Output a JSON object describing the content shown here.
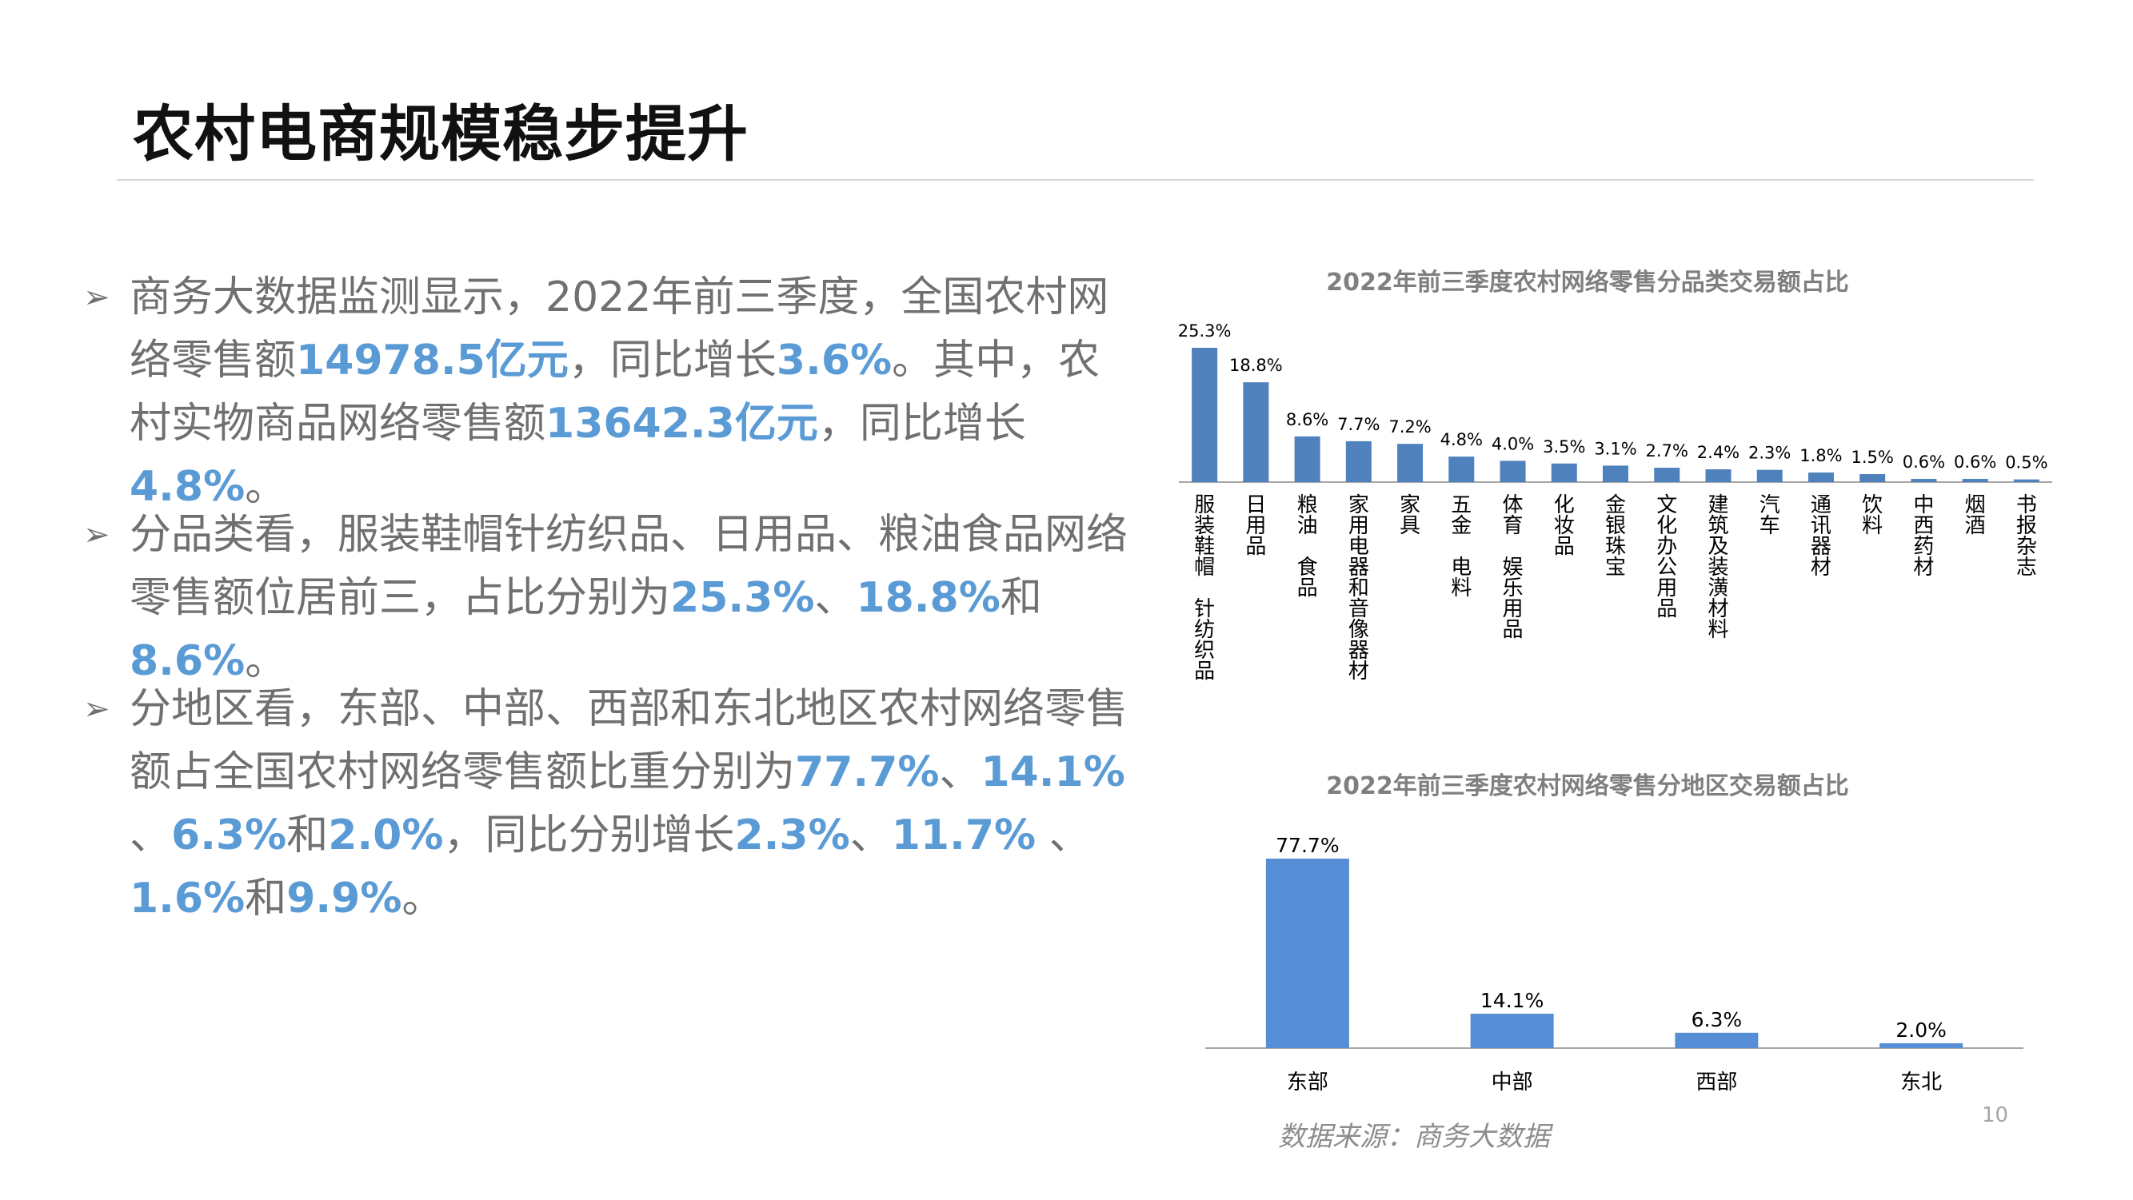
{
  "title": "农村电商规模稳步提升",
  "bullets": [
    {
      "marker": "➢",
      "segments": [
        {
          "t": "商务大数据监测显示，2022年前三季度，全国农村网络零售额",
          "hl": false
        },
        {
          "t": "14978.5亿元",
          "hl": true
        },
        {
          "t": "，同比增长",
          "hl": false
        },
        {
          "t": "3.6%",
          "hl": true
        },
        {
          "t": "。其中，农村实物商品网络零售额",
          "hl": false
        },
        {
          "t": "13642.3亿元",
          "hl": true
        },
        {
          "t": "，同比增长",
          "hl": false
        },
        {
          "t": "4.8%",
          "hl": true
        },
        {
          "t": "。",
          "hl": false
        }
      ]
    },
    {
      "marker": "➢",
      "segments": [
        {
          "t": "分品类看，服装鞋帽针纺织品、日用品、粮油食品网络零售额位居前三，占比分别为",
          "hl": false
        },
        {
          "t": "25.3%",
          "hl": true
        },
        {
          "t": "、",
          "hl": false
        },
        {
          "t": "18.8%",
          "hl": true
        },
        {
          "t": "和",
          "hl": false
        },
        {
          "t": "8.6%",
          "hl": true
        },
        {
          "t": "。",
          "hl": false
        }
      ]
    },
    {
      "marker": "➢",
      "segments": [
        {
          "t": "分地区看，东部、中部、西部和东北地区农村网络零售额占全国农村网络零售额比重分别为",
          "hl": false
        },
        {
          "t": "77.7%",
          "hl": true
        },
        {
          "t": "、",
          "hl": false
        },
        {
          "t": "14.1%",
          "hl": true
        },
        {
          "t": " 、",
          "hl": false
        },
        {
          "t": "6.3%",
          "hl": true
        },
        {
          "t": "和",
          "hl": false
        },
        {
          "t": "2.0%",
          "hl": true
        },
        {
          "t": "，同比分别增长",
          "hl": false
        },
        {
          "t": "2.3%",
          "hl": true
        },
        {
          "t": "、",
          "hl": false
        },
        {
          "t": "11.7%",
          "hl": true
        },
        {
          "t": " 、",
          "hl": false
        },
        {
          "t": "1.6%",
          "hl": true
        },
        {
          "t": "和",
          "hl": false
        },
        {
          "t": "9.9%",
          "hl": true
        },
        {
          "t": "。",
          "hl": false
        }
      ]
    }
  ],
  "colors": {
    "bar": "#4f81bd",
    "bar_region": "#558ed5",
    "highlight": "#5b9bd5",
    "body_text": "#707070",
    "chart_title": "#7f7f7f"
  },
  "chart_data": [
    {
      "type": "bar",
      "title": "2022年前三季度农村网络零售分品类交易额占比",
      "categories": [
        "服装鞋帽 针纺织品",
        "日用品",
        "粮油 食品",
        "家用电器和音像器材",
        "家具",
        "五金 电料",
        "体育 娱乐用品",
        "化妆品",
        "金银珠宝",
        "文化办公用品",
        "建筑及装潢材料",
        "汽车",
        "通讯器材",
        "饮料",
        "中西药材",
        "烟酒",
        "书报杂志"
      ],
      "values": [
        25.3,
        18.8,
        8.6,
        7.7,
        7.2,
        4.8,
        4.0,
        3.5,
        3.1,
        2.7,
        2.4,
        2.3,
        1.8,
        1.5,
        0.6,
        0.6,
        0.5
      ],
      "labels": [
        "25.3%",
        "18.8%",
        "8.6%",
        "7.7%",
        "7.2%",
        "4.8%",
        "4.0%",
        "3.5%",
        "3.1%",
        "2.7%",
        "2.4%",
        "2.3%",
        "1.8%",
        "1.5%",
        "0.6%",
        "0.6%",
        "0.5%"
      ],
      "ylim": [
        0,
        25.3
      ],
      "grid": false,
      "legend": "none"
    },
    {
      "type": "bar",
      "title": "2022年前三季度农村网络零售分地区交易额占比",
      "categories": [
        "东部",
        "中部",
        "西部",
        "东北"
      ],
      "values": [
        77.7,
        14.1,
        6.3,
        2.0
      ],
      "labels": [
        "77.7%",
        "14.1%",
        "6.3%",
        "2.0%"
      ],
      "ylim": [
        0,
        77.7
      ],
      "grid": false,
      "legend": "none"
    }
  ],
  "source": "数据来源：商务大数据",
  "page_number": "10"
}
